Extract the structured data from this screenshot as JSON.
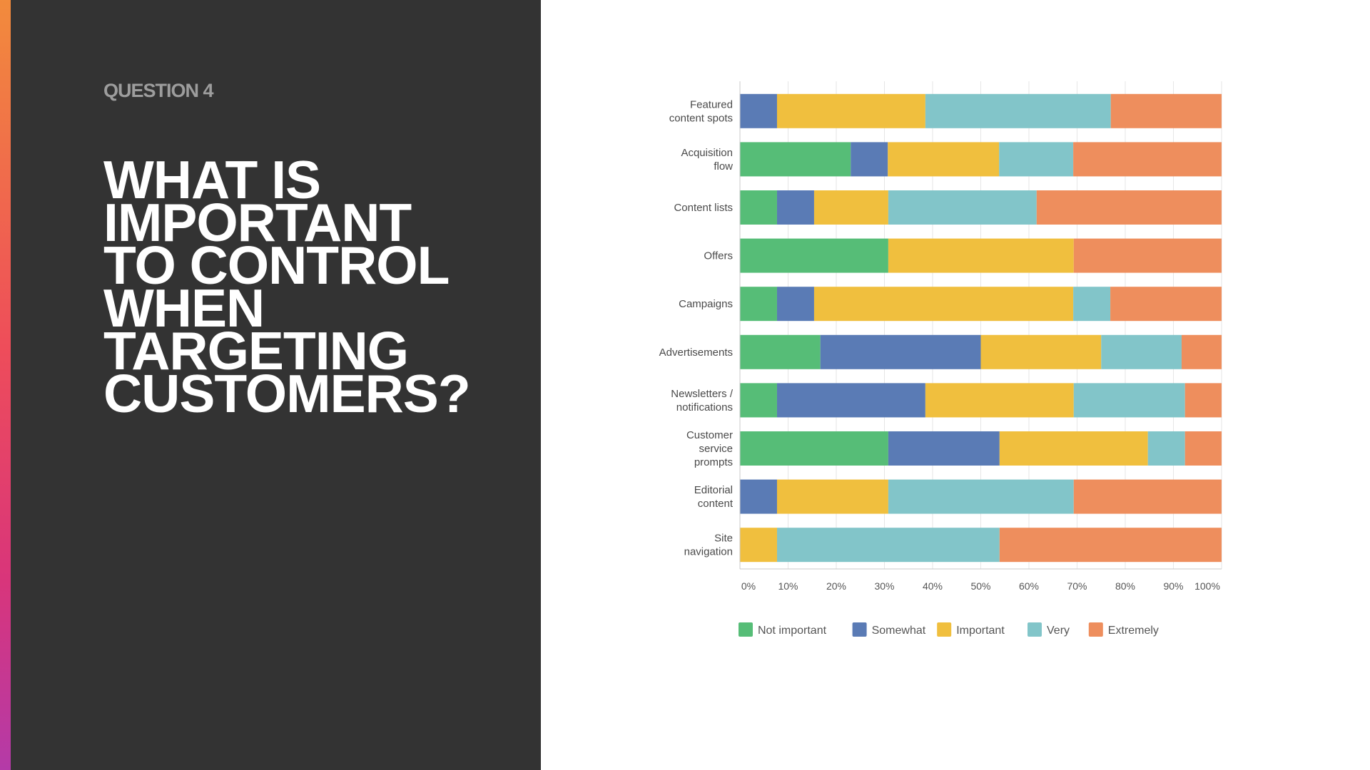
{
  "slide": {
    "question_label": "QUESTION 4",
    "headline": "WHAT IS\nIMPORTANT\nTO CONTROL\nWHEN\nTARGETING\nCUSTOMERS?"
  },
  "colors": {
    "panel_background": "#333333",
    "headline_text": "#ffffff",
    "question_label_text": "#9d9d9d"
  },
  "chart_data": {
    "type": "bar",
    "orientation": "horizontal",
    "stacked": true,
    "categories": [
      [
        "Featured",
        "content spots"
      ],
      [
        "Acquisition",
        "flow"
      ],
      [
        "Content lists"
      ],
      [
        "Offers"
      ],
      [
        "Campaigns"
      ],
      [
        "Advertisements"
      ],
      [
        "Newsletters /",
        "notifications"
      ],
      [
        "Customer",
        "service",
        "prompts"
      ],
      [
        "Editorial",
        "content"
      ],
      [
        "Site",
        "navigation"
      ]
    ],
    "series": [
      {
        "name": "Not important",
        "color": "#56bd77",
        "values": [
          0,
          23,
          7.7,
          30.8,
          7.7,
          16.7,
          7.7,
          30.8,
          0,
          0
        ]
      },
      {
        "name": "Somewhat",
        "color": "#5a7bb5",
        "values": [
          7.7,
          7.7,
          7.7,
          0,
          7.7,
          33.3,
          30.8,
          23.1,
          7.7,
          0
        ]
      },
      {
        "name": "Important",
        "color": "#f0bf3e",
        "values": [
          30.8,
          23.1,
          15.4,
          38.5,
          53.8,
          25,
          30.8,
          30.8,
          23.1,
          7.7
        ]
      },
      {
        "name": "Very",
        "color": "#82c5c9",
        "values": [
          38.5,
          15.4,
          30.8,
          0,
          7.7,
          16.7,
          23.1,
          7.7,
          38.5,
          46.2
        ]
      },
      {
        "name": "Extremely",
        "color": "#ee8e5d",
        "values": [
          23,
          30.8,
          38.4,
          30.7,
          23.1,
          8.3,
          7.6,
          7.6,
          30.7,
          46.1
        ]
      }
    ],
    "x_ticks": [
      "0%",
      "10%",
      "20%",
      "30%",
      "40%",
      "50%",
      "60%",
      "70%",
      "80%",
      "90%",
      "100%"
    ],
    "xlim": [
      0,
      100
    ],
    "grid": true,
    "legend_position": "bottom"
  }
}
